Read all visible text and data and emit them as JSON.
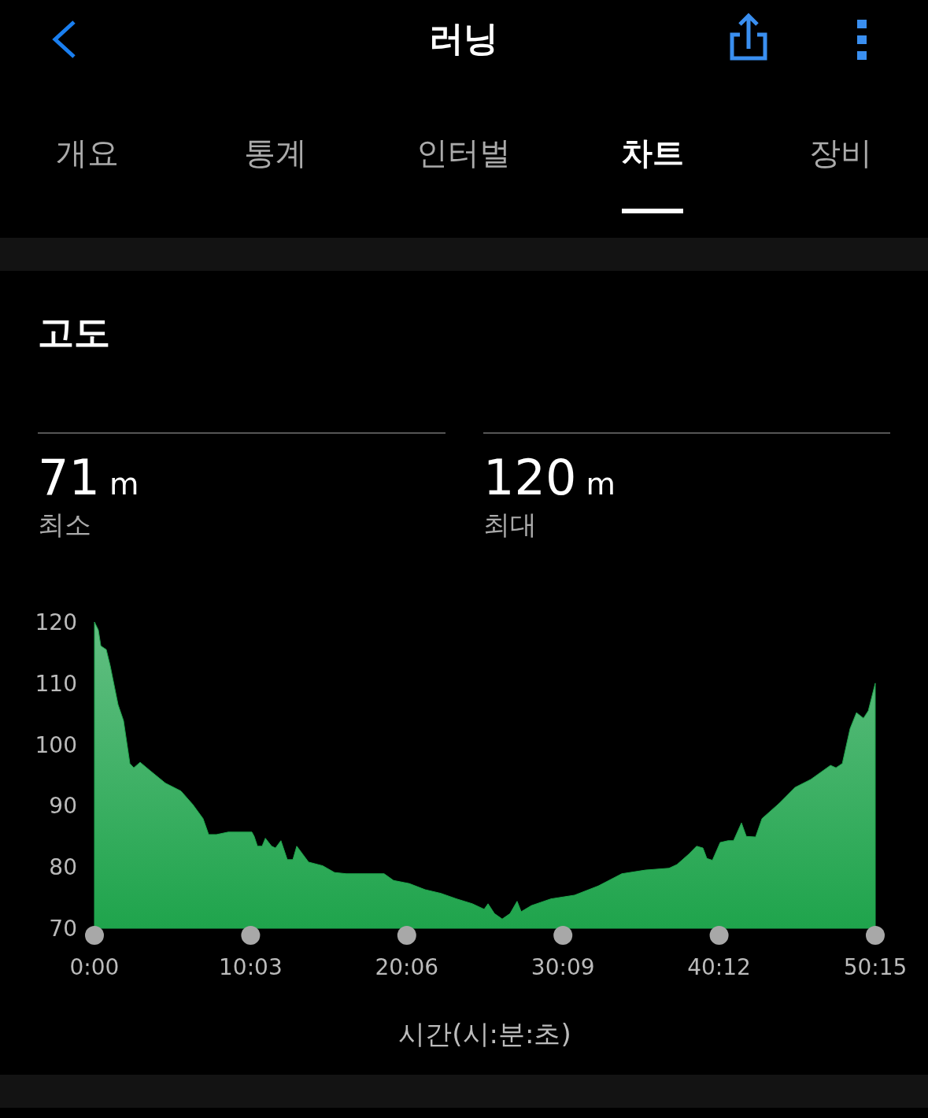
{
  "chart_data": {
    "type": "area",
    "title": "고도",
    "xlabel": "시간(시:분:초)",
    "annotations": [
      "러닝",
      "개요",
      "통계",
      "인터벌",
      "차트",
      "장비",
      "71 m",
      "최소",
      "120 m",
      "최대"
    ],
    "x": [
      0,
      0.25,
      0.41,
      0.76,
      1.01,
      1.52,
      1.87,
      2.28,
      2.53,
      2.94,
      3.55,
      4.56,
      5.57,
      6.33,
      6.99,
      7.35,
      7.85,
      8.61,
      10.13,
      10.28,
      10.49,
      10.79,
      11.0,
      11.4,
      11.65,
      12.0,
      12.41,
      12.77,
      13.02,
      13.78,
      14.69,
      15.45,
      16.21,
      17.73,
      18.64,
      19.25,
      20.26,
      21.28,
      22.29,
      23.3,
      24.32,
      25.08,
      25.33,
      25.74,
      26.24,
      26.75,
      27.2,
      27.46,
      28.12,
      29.38,
      30.9,
      32.42,
      33.94,
      35.46,
      36.98,
      37.49,
      38.25,
      38.75,
      39.16,
      39.41,
      39.77,
      40.27,
      40.78,
      41.13,
      41.64,
      41.95,
      42.55,
      42.96,
      44.07,
      45.09,
      46.1,
      47.37,
      47.72,
      48.13,
      48.63,
      49.04,
      49.49,
      49.8,
      50.25
    ],
    "values": [
      120,
      118.7,
      116.1,
      115.5,
      112.9,
      106.5,
      103.9,
      96.9,
      96.2,
      97.1,
      95.8,
      93.7,
      92.4,
      90.2,
      87.9,
      85.3,
      85.3,
      85.7,
      85.7,
      85.0,
      83.4,
      83.4,
      84.7,
      83.4,
      83.1,
      84.3,
      81.2,
      81.2,
      83.4,
      80.8,
      80.2,
      79.1,
      78.9,
      78.9,
      78.9,
      77.8,
      77.3,
      76.3,
      75.7,
      74.8,
      74.0,
      73.1,
      74.0,
      72.4,
      71.5,
      72.4,
      74.4,
      72.7,
      73.7,
      74.8,
      75.4,
      76.9,
      78.9,
      79.5,
      79.8,
      80.4,
      82.1,
      83.4,
      83.1,
      81.4,
      81.1,
      84.0,
      84.3,
      84.3,
      87.2,
      85.0,
      84.9,
      87.9,
      90.4,
      93.0,
      94.3,
      96.6,
      96.2,
      96.9,
      102.6,
      105.2,
      104.3,
      105.5,
      110.0
    ],
    "color": "#1fa44c",
    "xlim": [
      0,
      50.25
    ],
    "xticks": [
      {
        "value": 0,
        "label": "0:00"
      },
      {
        "value": 10.05,
        "label": "10:03"
      },
      {
        "value": 20.1,
        "label": "20:06"
      },
      {
        "value": 30.15,
        "label": "30:09"
      },
      {
        "value": 40.2,
        "label": "40:12"
      },
      {
        "value": 50.25,
        "label": "50:15"
      }
    ],
    "ylim": [
      70,
      120
    ],
    "yticks": [
      70,
      80,
      90,
      100,
      110,
      120
    ],
    "grid": false
  }
}
